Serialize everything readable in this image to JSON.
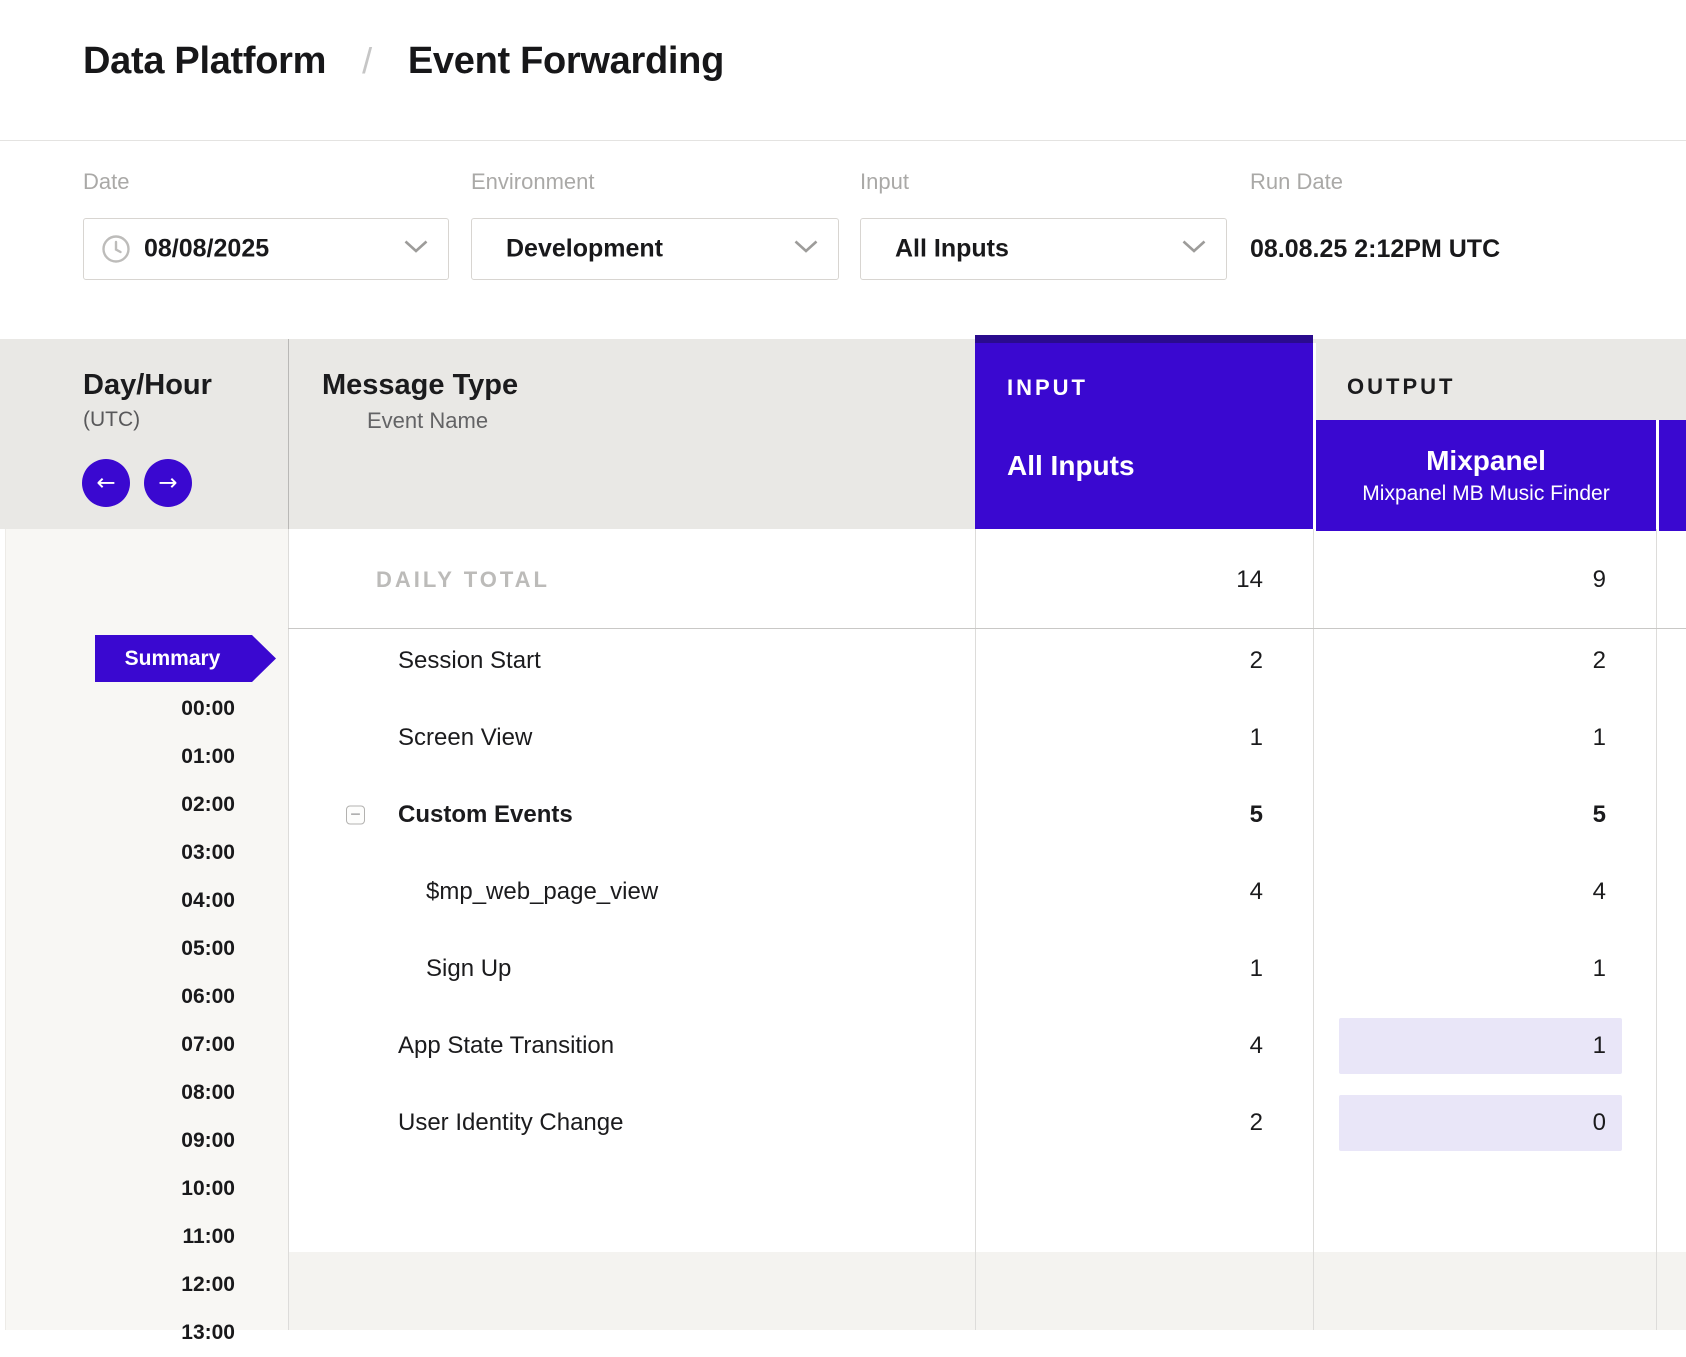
{
  "colors": {
    "purple": "#3a08d0",
    "purple_dark": "#2a0b8e",
    "output_highlight": "#e9e6f8"
  },
  "breadcrumb": {
    "section": "Data Platform",
    "separator": "/",
    "page": "Event Forwarding"
  },
  "filters": {
    "date": {
      "label": "Date",
      "value": "08/08/2025"
    },
    "environment": {
      "label": "Environment",
      "value": "Development"
    },
    "input": {
      "label": "Input",
      "value": "All Inputs"
    },
    "run_date": {
      "label": "Run Date",
      "value": "08.08.25 2:12PM UTC"
    }
  },
  "table": {
    "day_hour_header": {
      "title": "Day/Hour",
      "subtitle": "(UTC)"
    },
    "message_type_header": {
      "title": "Message Type",
      "subtitle": "Event Name"
    },
    "input_header": {
      "eyebrow": "INPUT",
      "title": "All Inputs"
    },
    "output_header": {
      "eyebrow": "OUTPUT",
      "title": "Mixpanel",
      "subtitle": "Mixpanel MB Music Finder"
    },
    "rows": [
      {
        "label": "DAILY TOTAL",
        "total": true,
        "input": "14",
        "output": "9"
      },
      {
        "label": "Session Start",
        "input": "2",
        "output": "2"
      },
      {
        "label": "Screen View",
        "input": "1",
        "output": "1"
      },
      {
        "label": "Custom Events",
        "bold": true,
        "collapsible": true,
        "input": "5",
        "output": "5"
      },
      {
        "label": "$mp_web_page_view",
        "indent": 1,
        "input": "4",
        "output": "4"
      },
      {
        "label": "Sign Up",
        "indent": 1,
        "input": "1",
        "output": "1"
      },
      {
        "label": "App State Transition",
        "input": "4",
        "output": "1",
        "output_highlight": true
      },
      {
        "label": "User Identity Change",
        "input": "2",
        "output": "0",
        "output_highlight": true
      }
    ],
    "sidebar": {
      "summary_label": "Summary",
      "hours": [
        "00:00",
        "01:00",
        "02:00",
        "03:00",
        "04:00",
        "05:00",
        "06:00",
        "07:00",
        "08:00",
        "09:00",
        "10:00",
        "11:00",
        "12:00",
        "13:00"
      ]
    }
  },
  "icons": {
    "prev_hour": "←",
    "next_hour": "→",
    "collapse": "−"
  }
}
